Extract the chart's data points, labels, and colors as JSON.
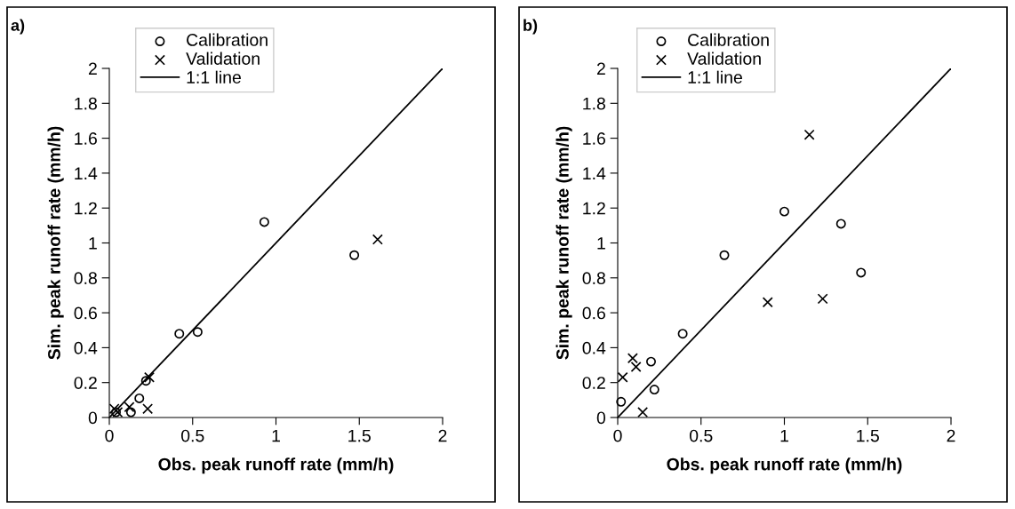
{
  "chart_data": [
    {
      "type": "scatter",
      "title": "a)",
      "xlabel": "Obs. peak runoff rate (mm/h)",
      "ylabel": "Sim. peak runoff rate (mm/h)",
      "xlim": [
        0,
        2
      ],
      "ylim": [
        0,
        2
      ],
      "xticks": [
        0,
        0.5,
        1,
        1.5,
        2
      ],
      "yticks": [
        0,
        0.2,
        0.4,
        0.6,
        0.8,
        1,
        1.2,
        1.4,
        1.6,
        1.8,
        2
      ],
      "grid": false,
      "legend": "top left",
      "series": [
        {
          "name": "Calibration",
          "marker": "circle",
          "color": "#000000",
          "x": [
            0.93,
            1.47,
            0.42,
            0.53,
            0.22,
            0.18,
            0.13,
            0.04
          ],
          "values": [
            1.12,
            0.93,
            0.48,
            0.49,
            0.21,
            0.11,
            0.03,
            0.03
          ]
        },
        {
          "name": "Validation",
          "marker": "cross",
          "color": "#000000",
          "x": [
            1.61,
            0.24,
            0.23,
            0.12,
            0.03,
            0.05
          ],
          "values": [
            1.02,
            0.23,
            0.05,
            0.06,
            0.05,
            0.03
          ]
        },
        {
          "name": "1:1 line",
          "type": "line",
          "marker": "none",
          "line_style": "solid",
          "color": "#000000",
          "x": [
            0,
            2
          ],
          "values": [
            0,
            2
          ]
        }
      ]
    },
    {
      "type": "scatter",
      "title": "b)",
      "xlabel": "Obs. peak runoff rate (mm/h)",
      "ylabel": "Sim. peak runoff rate (mm/h)",
      "xlim": [
        0,
        2
      ],
      "ylim": [
        0,
        2
      ],
      "xticks": [
        0,
        0.5,
        1,
        1.5,
        2
      ],
      "yticks": [
        0,
        0.2,
        0.4,
        0.6,
        0.8,
        1,
        1.2,
        1.4,
        1.6,
        1.8,
        2
      ],
      "grid": false,
      "legend": "top left",
      "series": [
        {
          "name": "Calibration",
          "marker": "circle",
          "color": "#000000",
          "x": [
            1.0,
            1.34,
            0.64,
            1.46,
            0.39,
            0.2,
            0.22,
            0.02
          ],
          "values": [
            1.18,
            1.11,
            0.93,
            0.83,
            0.48,
            0.32,
            0.16,
            0.09
          ]
        },
        {
          "name": "Validation",
          "marker": "cross",
          "color": "#000000",
          "x": [
            1.15,
            0.9,
            1.23,
            0.09,
            0.11,
            0.03,
            0.15
          ],
          "values": [
            1.62,
            0.66,
            0.68,
            0.34,
            0.29,
            0.23,
            0.03
          ]
        },
        {
          "name": "1:1 line",
          "type": "line",
          "marker": "none",
          "line_style": "solid",
          "color": "#000000",
          "x": [
            0,
            2
          ],
          "values": [
            0,
            2
          ]
        }
      ]
    }
  ]
}
